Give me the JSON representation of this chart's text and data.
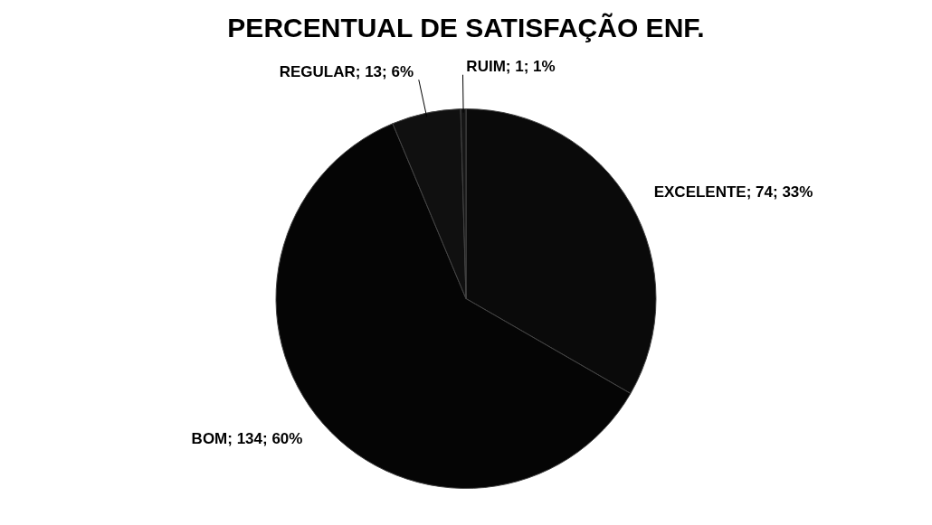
{
  "chart_data": {
    "type": "pie",
    "title": "PERCENTUAL DE SATISFAÇÃO ENF.",
    "categories": [
      "EXCELENTE",
      "BOM",
      "REGULAR",
      "RUIM"
    ],
    "values": [
      74,
      134,
      13,
      1
    ],
    "colors": [
      "#0a0a0a",
      "#050505",
      "#101010",
      "#151515"
    ],
    "value_labels": [
      "; 74; 33%",
      "; 134; 60%",
      "; 13; 6%",
      "; 1; 1%"
    ]
  }
}
